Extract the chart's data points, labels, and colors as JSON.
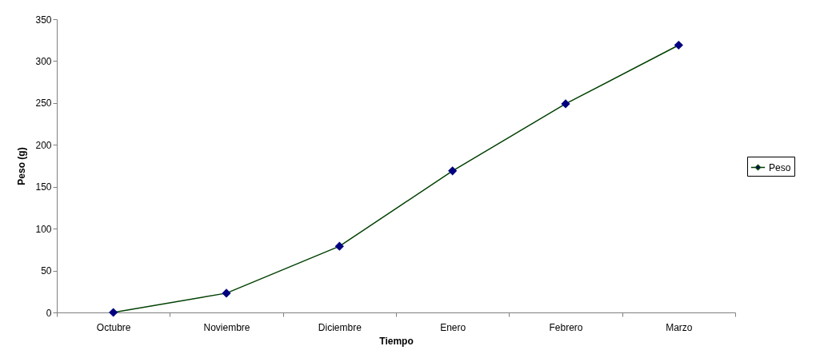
{
  "chart_data": {
    "type": "line",
    "xlabel": "Tiempo",
    "ylabel": "Peso (g)",
    "categories": [
      "Octubre",
      "Noviembre",
      "Diciembre",
      "Enero",
      "Febrero",
      "Marzo"
    ],
    "series": [
      {
        "name": "Peso",
        "color": "#004000",
        "colors": [
          "#000080",
          "#000080",
          "#000080",
          "#000080",
          "#000080",
          "#000080"
        ],
        "values": [
          0,
          23,
          79,
          169,
          249,
          319
        ]
      }
    ],
    "ylim": [
      0,
      350
    ],
    "yticks": [
      0,
      50,
      100,
      150,
      200,
      250,
      300,
      350
    ],
    "grid": false,
    "legend": "right",
    "marker": "diamond",
    "line_style": "solid"
  }
}
